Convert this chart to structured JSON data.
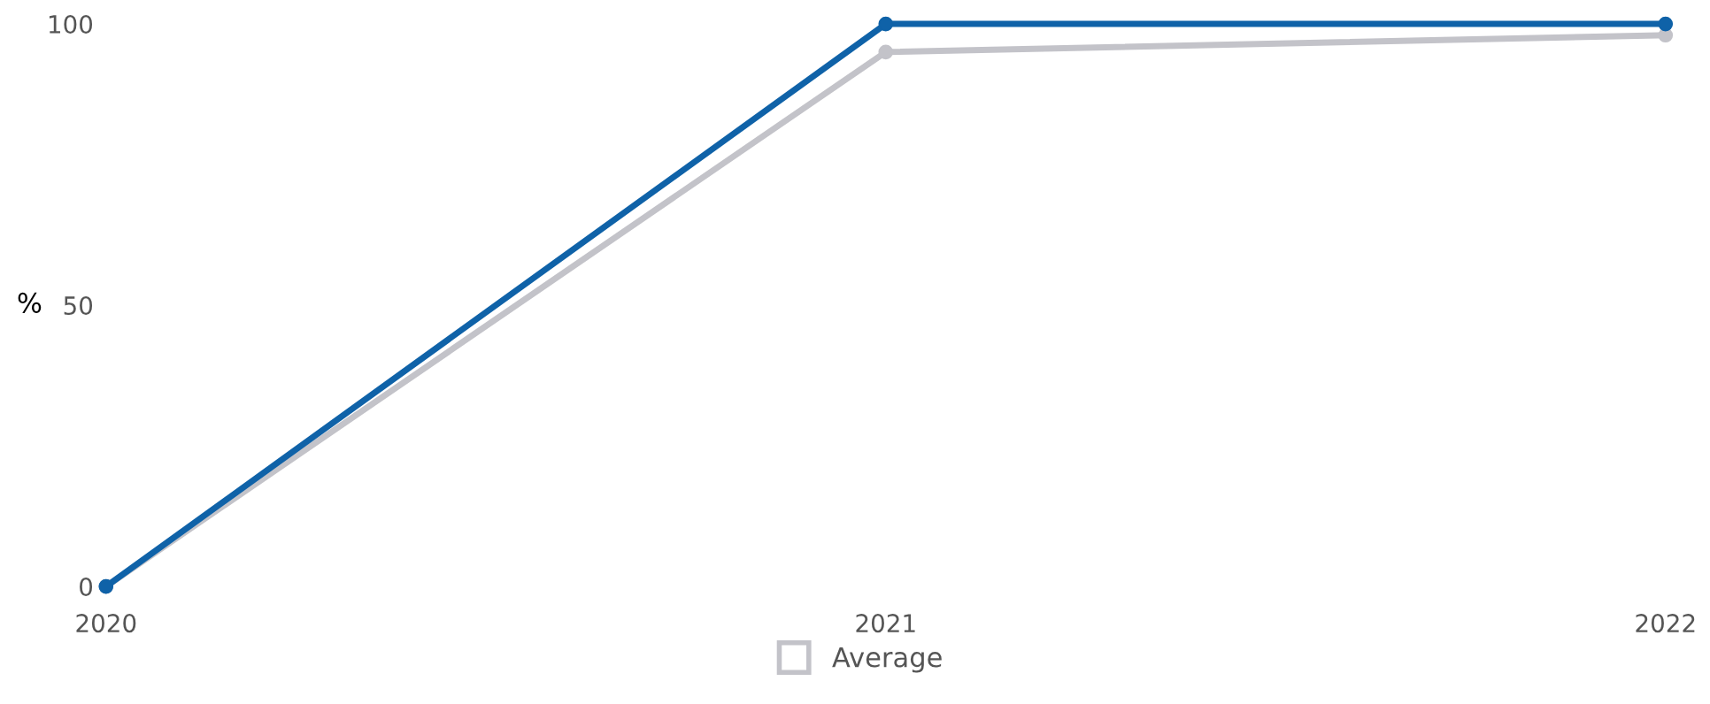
{
  "chart_data": {
    "type": "line",
    "ylabel": "%",
    "categories": [
      "2020",
      "2021",
      "2022"
    ],
    "series": [
      {
        "name": "Average",
        "color": "#c3c3c9",
        "values": [
          0,
          95,
          98
        ]
      },
      {
        "color": "#0f62a8",
        "values": [
          0,
          100,
          100
        ]
      }
    ],
    "ylim": [
      0,
      100
    ],
    "yticks": [
      0,
      50,
      100
    ],
    "marker": "circle",
    "line_style": "solid",
    "grid": false,
    "legend": "bottom"
  }
}
